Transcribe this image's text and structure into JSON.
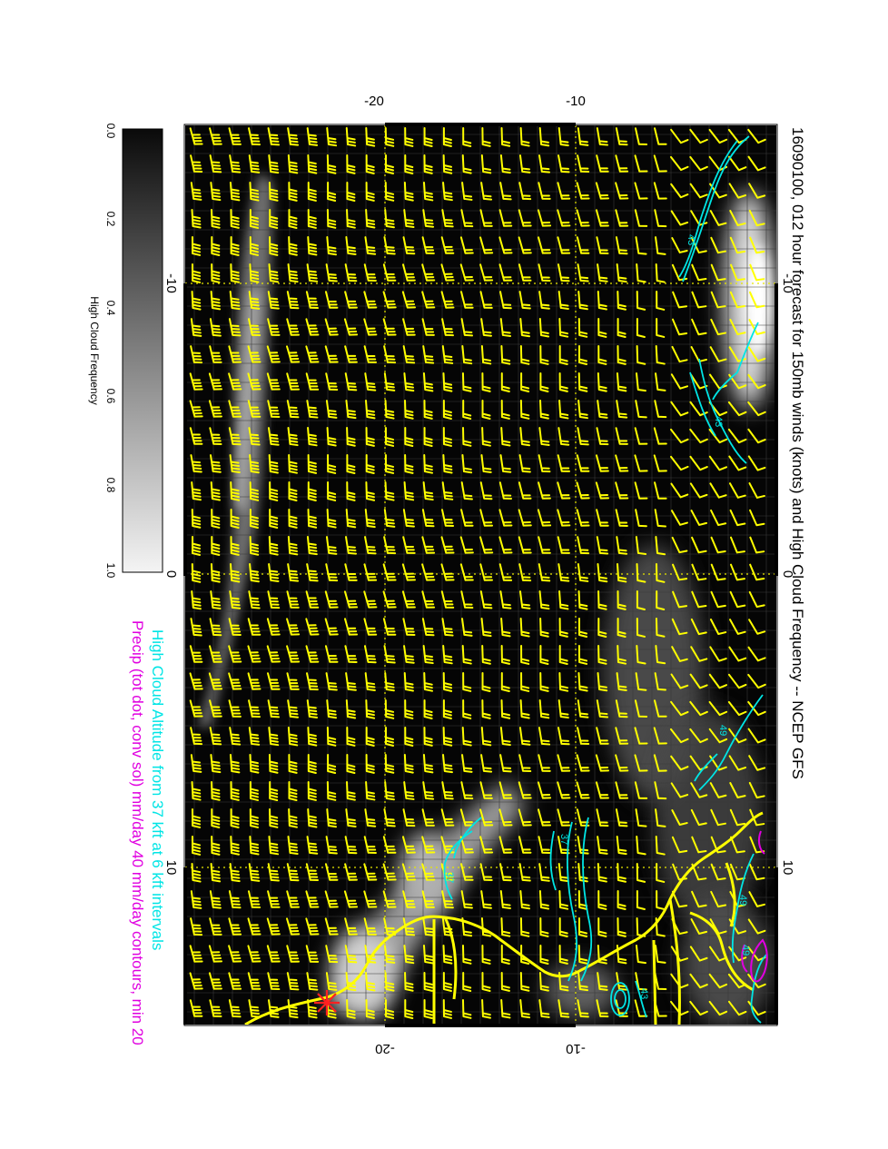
{
  "title": "16090100, 012 hour forecast for 150mb winds (knots) and High Cloud Frequency -- NCEP GFS",
  "legend_line_1": "High Cloud Altitude from 37 kft at 6 kft intervals",
  "legend_line_2": "Precip (tot dot, conv sol) mm/day 40 mm/day contours, min 20",
  "colorbar": {
    "label": "High Cloud Frequency",
    "ticks": [
      "0.0",
      "0.2",
      "0.4",
      "0.6",
      "0.8",
      "1.0"
    ]
  },
  "axes": {
    "longitude_ticks_top": [
      "-20",
      "-10"
    ],
    "longitude_ticks_bottom": [
      "-20",
      "-10"
    ],
    "latitude_ticks_left": [
      "-10",
      "0",
      "10"
    ],
    "latitude_ticks_right": [
      "-10",
      "0",
      "10"
    ]
  },
  "contour_labels": [
    "43",
    "43",
    "49",
    "37",
    "37",
    "49",
    "43",
    "49"
  ],
  "colors": {
    "map_background": "#050505",
    "wind_barbs": "#ffff00",
    "coastline": "#ffff00",
    "cloud_altitude_contours": "#00e5e5",
    "precip_contours": "#e000e0",
    "marker": "#ff2020"
  },
  "icons": {
    "location_marker": "red-asterisk-icon"
  }
}
